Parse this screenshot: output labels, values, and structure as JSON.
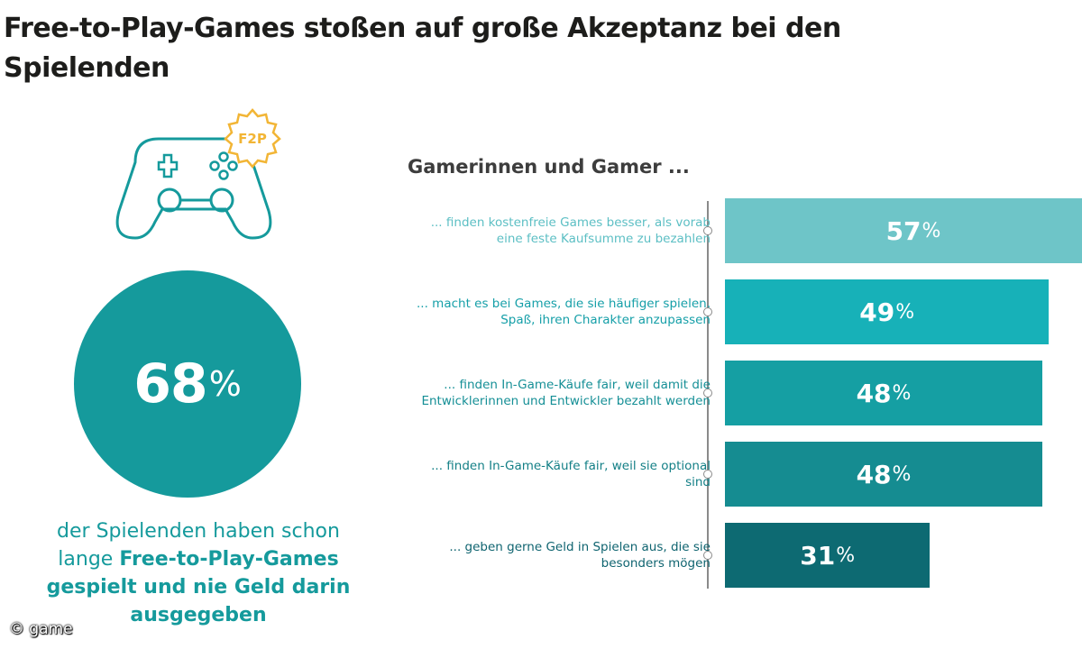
{
  "title": "Free-to-Play-Games stoßen auf große Akzeptanz bei den Spielenden",
  "badge": "F2P",
  "highlight": {
    "value": "68",
    "unit": "%",
    "caption_pre": "der Spielenden haben schon lange ",
    "caption_bold": "Free-to-Play-Games gespielt und nie Geld darin ausgegeben"
  },
  "copyright": "© game",
  "colors": {
    "circle": "#159a9c",
    "bars": [
      "#6ec5c8",
      "#17b1b8",
      "#159fa3",
      "#158c91",
      "#0d6a72"
    ],
    "labels": [
      "#5cbfc4",
      "#159fa8",
      "#158f96",
      "#137f86",
      "#0f6470"
    ]
  },
  "chart_data": {
    "type": "bar",
    "orientation": "horizontal",
    "subtitle": "Gamerinnen und Gamer ...",
    "unit": "%",
    "xlim": [
      0,
      57
    ],
    "categories": [
      "... finden kostenfreie Games besser, als vorab eine feste Kaufsumme zu bezahlen",
      "... macht es bei Games, die sie häufiger spielen, Spaß, ihren Charakter anzupassen",
      "... finden In-Game-Käufe fair, weil damit die Entwicklerinnen und Entwickler bezahlt werden",
      "... finden In-Game-Käufe fair, weil sie optional sind",
      "... geben gerne Geld in Spielen aus, die sie besonders mögen"
    ],
    "values": [
      57,
      49,
      48,
      48,
      31
    ]
  }
}
